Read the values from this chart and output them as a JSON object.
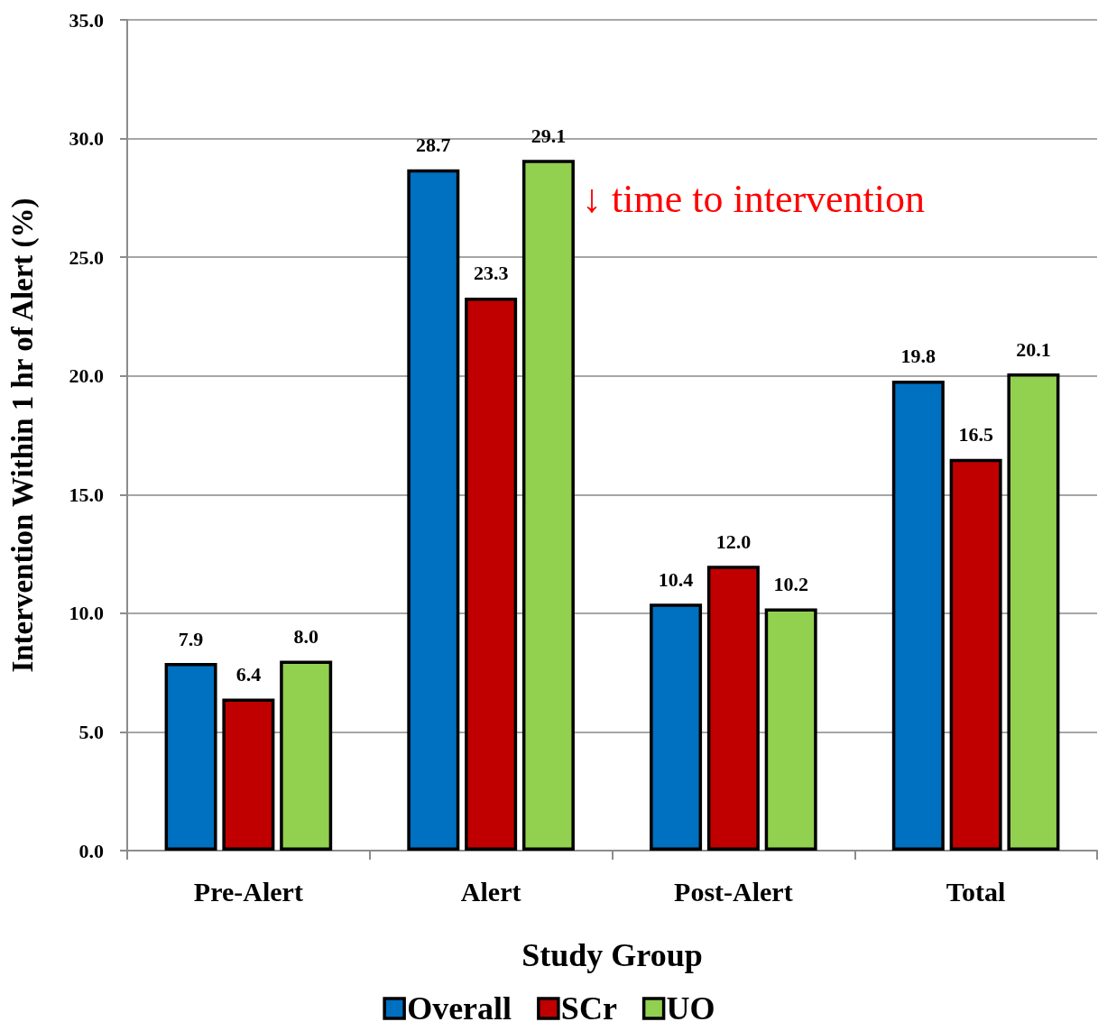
{
  "chart_data": {
    "type": "bar",
    "xlabel": "Study Group",
    "ylabel": "Intervention Within 1 hr of Alert (%)",
    "categories": [
      "Pre-Alert",
      "Alert",
      "Post-Alert",
      "Total"
    ],
    "series": [
      {
        "name": "Overall",
        "color": "#0070c0",
        "values": [
          7.9,
          28.7,
          10.4,
          19.8
        ],
        "value_labels": [
          "7.9",
          "28.7",
          "10.4",
          "19.8"
        ]
      },
      {
        "name": "SCr",
        "color": "#c00000",
        "values": [
          6.4,
          23.3,
          12.0,
          16.5
        ],
        "value_labels": [
          "6.4",
          "23.3",
          "12.0",
          "16.5"
        ]
      },
      {
        "name": "UO",
        "color": "#92d050",
        "values": [
          8.0,
          29.1,
          10.2,
          20.1
        ],
        "value_labels": [
          "8.0",
          "29.1",
          "10.2",
          "20.1"
        ]
      }
    ],
    "ylim": [
      0,
      35
    ],
    "yticks": [
      {
        "value": 0,
        "label": "0.0"
      },
      {
        "value": 5,
        "label": "5.0"
      },
      {
        "value": 10,
        "label": "10.0"
      },
      {
        "value": 15,
        "label": "15.0"
      },
      {
        "value": 20,
        "label": "20.0"
      },
      {
        "value": 25,
        "label": "25.0"
      },
      {
        "value": 30,
        "label": "30.0"
      },
      {
        "value": 35,
        "label": "35.0"
      }
    ],
    "grid": "y",
    "legend": "bottom",
    "annotations": [
      "↓ time to intervention"
    ]
  }
}
